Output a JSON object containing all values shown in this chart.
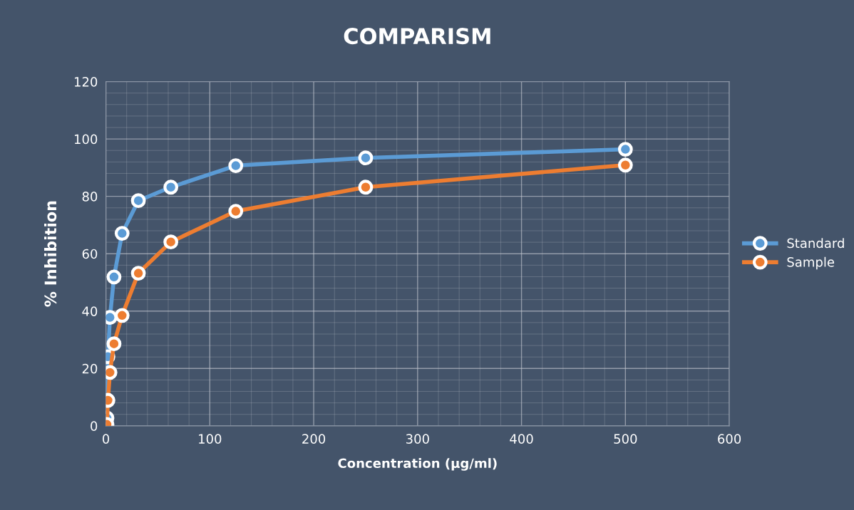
{
  "chart_data": {
    "type": "line",
    "title": "COMPARISM",
    "xlabel": "Concentration (µg/ml)",
    "ylabel": "% Inhibition",
    "x": [
      0.98,
      1.95,
      3.9,
      7.8,
      15.6,
      31.25,
      62.5,
      125,
      250,
      500
    ],
    "series": [
      {
        "name": "Standard",
        "color": "#5b9bd5",
        "values": [
          2.7,
          24.1,
          37.8,
          51.9,
          67.1,
          78.5,
          83.2,
          90.7,
          93.4,
          96.4
        ]
      },
      {
        "name": "Sample",
        "color": "#ed7d31",
        "values": [
          0.5,
          8.9,
          18.6,
          28.6,
          38.5,
          53.2,
          64.1,
          74.8,
          83.2,
          90.9
        ]
      }
    ],
    "xlim": [
      0,
      600
    ],
    "xticks": [
      0,
      100,
      200,
      300,
      400,
      500,
      600
    ],
    "ylim": [
      0,
      120
    ],
    "yticks": [
      0,
      20,
      40,
      60,
      80,
      100,
      120
    ],
    "grid": true,
    "legend": "right",
    "marker": "circle",
    "line_style": "solid"
  }
}
